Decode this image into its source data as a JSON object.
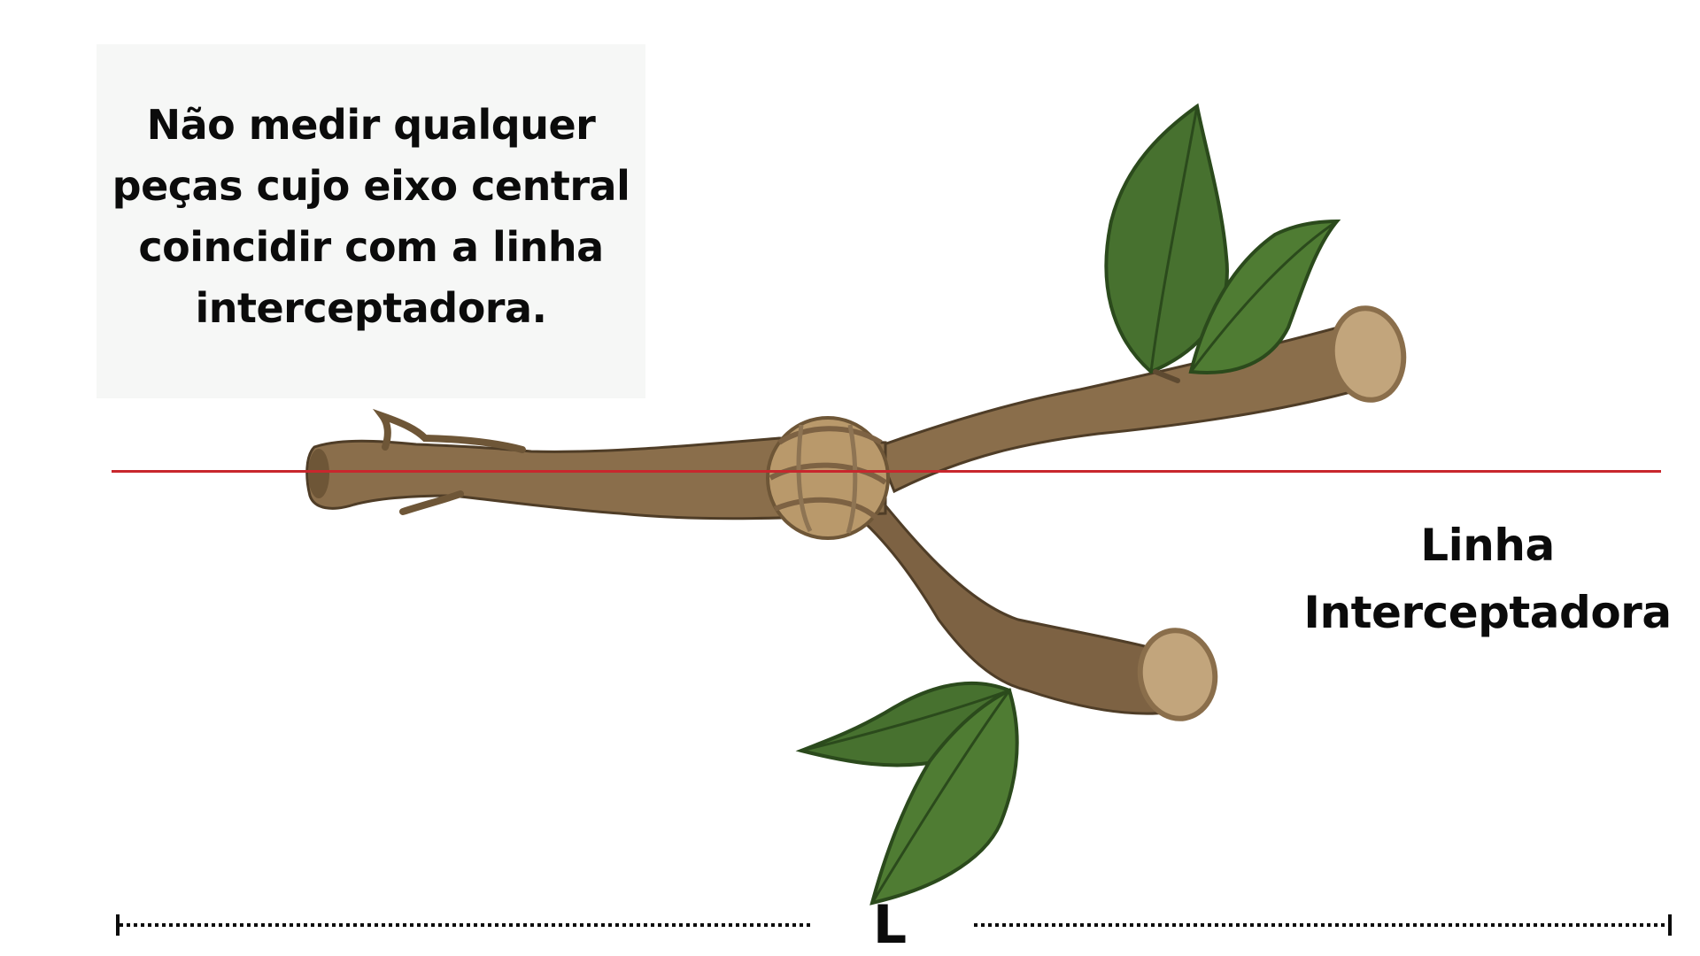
{
  "note": {
    "lines": [
      "Não medir qualquer",
      "peças cujo eixo central",
      "coincidir com a linha",
      "interceptadora."
    ]
  },
  "intercept_line": {
    "label_lines": [
      "Linha",
      "Interceptadora"
    ],
    "color": "#c8272d"
  },
  "measure": {
    "label": "L"
  },
  "colors": {
    "bark": "#8a6e4b",
    "bark_dark": "#5e4a31",
    "wood_end": "#c2a57c",
    "leaf": "#47712f",
    "leaf_dark": "#2b4a1c",
    "text": "#0b0b0b"
  }
}
